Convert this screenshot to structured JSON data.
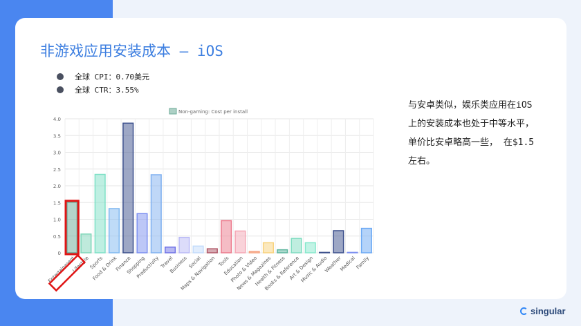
{
  "slide": {
    "title": "非游戏应用安装成本 – iOS",
    "bullets": [
      "全球 CPI：0.70美元",
      "全球 CTR：3.55%"
    ],
    "side_text": "与安卓类似，娱乐类应用在iOS 上的安装成本也处于中等水平，单价比安卓略高一些， 在$1.5左右。",
    "logo_text": "singular"
  },
  "colors": {
    "background_blue": "#4a86f0",
    "title": "#3c7ee0",
    "highlight": "#e01515"
  },
  "chart_data": {
    "type": "bar",
    "legend": "Non-gaming: Cost per install",
    "legend_position": "top-center",
    "grid": true,
    "ylim": [
      0,
      4.0
    ],
    "yticks": [
      "0",
      "0.5",
      "1.0",
      "1.5",
      "2.0",
      "2.5",
      "3.0",
      "3.5",
      "4.0"
    ],
    "categories": [
      "Entertainment",
      "Lifestyle",
      "Sports",
      "Food & Drink",
      "Finance",
      "Shopping",
      "Productivity",
      "Travel",
      "Business",
      "Social",
      "Maps & Navigation",
      "Tools",
      "Education",
      "Photo & Video",
      "News & Magazines",
      "Health & Fitness",
      "Books & Reference",
      "Art & Design",
      "Music & Audio",
      "Weather",
      "Medical",
      "Family"
    ],
    "values": [
      1.51,
      0.56,
      2.34,
      1.32,
      3.87,
      1.17,
      2.33,
      0.17,
      0.46,
      0.2,
      0.12,
      0.96,
      0.65,
      0.04,
      0.3,
      0.09,
      0.43,
      0.3,
      0.0,
      0.66,
      0.01,
      0.73
    ],
    "bar_colors": [
      "#6aaa96",
      "#7fd6b9",
      "#7ee0c6",
      "#7fb8f0",
      "#3b4f8c",
      "#7c8ff0",
      "#7fb0f0",
      "#6f72e6",
      "#b9b9f6",
      "#c3dcfb",
      "#b05868",
      "#ec7a8c",
      "#f4a6b4",
      "#f6a27f",
      "#f8d27c",
      "#5db59e",
      "#7fdcc0",
      "#86e8cc",
      "#3b4f8c",
      "#3b4f8c",
      "#7c8ff0",
      "#6aa8f4"
    ],
    "highlighted_category": "Entertainment"
  }
}
